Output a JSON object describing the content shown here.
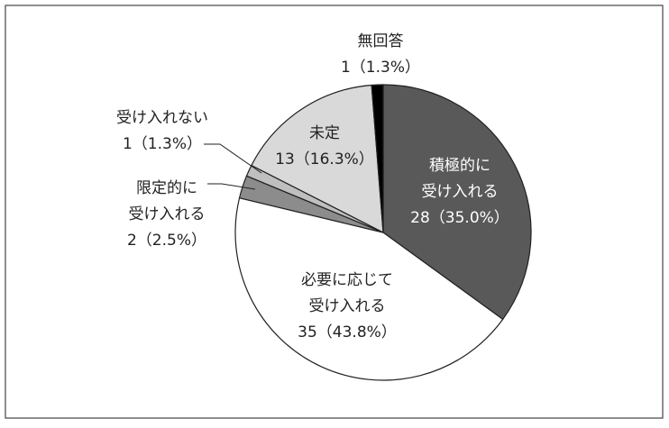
{
  "chart_data": {
    "type": "pie",
    "categories": [
      [
        "積極的に",
        "受け入れる"
      ],
      [
        "必要に応じて",
        "受け入れる"
      ],
      [
        "限定的に",
        "受け入れる"
      ],
      [
        "受け入れない"
      ],
      [
        "未定"
      ],
      [
        "無回答"
      ]
    ],
    "values": [
      28,
      35,
      2,
      1,
      13,
      1
    ],
    "value_labels": [
      "28（35.0%）",
      "35（43.8%）",
      "2（2.5%）",
      "1（1.3%）",
      "13（16.3%）",
      "1（1.3%）"
    ],
    "colors": [
      "#595959",
      "#ffffff",
      "#8c8c8c",
      "#bfbfbf",
      "#d9d9d9",
      "#000000"
    ]
  }
}
